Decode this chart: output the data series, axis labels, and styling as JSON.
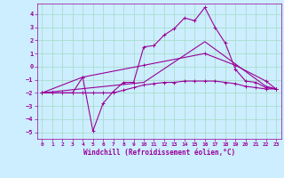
{
  "background_color": "#cceeff",
  "grid_color": "#aaddcc",
  "line_color": "#990099",
  "xlim": [
    -0.5,
    23.5
  ],
  "ylim": [
    -5.5,
    4.8
  ],
  "xticks": [
    0,
    1,
    2,
    3,
    4,
    5,
    6,
    7,
    8,
    9,
    10,
    11,
    12,
    13,
    14,
    15,
    16,
    17,
    18,
    19,
    20,
    21,
    22,
    23
  ],
  "yticks": [
    -5,
    -4,
    -3,
    -2,
    -1,
    0,
    1,
    2,
    3,
    4
  ],
  "xlabel": "Windchill (Refroidissement éolien,°C)",
  "series": [
    {
      "points": [
        [
          0,
          -2
        ],
        [
          1,
          -2
        ],
        [
          2,
          -2
        ],
        [
          3,
          -2
        ],
        [
          4,
          -0.8
        ],
        [
          5,
          -4.9
        ],
        [
          6,
          -2.8
        ],
        [
          7,
          -1.9
        ],
        [
          8,
          -1.2
        ],
        [
          9,
          -1.2
        ],
        [
          10,
          1.5
        ],
        [
          11,
          1.6
        ],
        [
          12,
          2.4
        ],
        [
          13,
          2.9
        ],
        [
          14,
          3.7
        ],
        [
          15,
          3.5
        ],
        [
          16,
          4.5
        ],
        [
          17,
          3.0
        ],
        [
          18,
          1.8
        ],
        [
          19,
          -0.2
        ],
        [
          20,
          -1.1
        ],
        [
          21,
          -1.2
        ],
        [
          22,
          -1.6
        ],
        [
          23,
          -1.7
        ]
      ],
      "marker": "+"
    },
    {
      "points": [
        [
          0,
          -2
        ],
        [
          1,
          -2
        ],
        [
          2,
          -2
        ],
        [
          3,
          -2
        ],
        [
          4,
          -2
        ],
        [
          5,
          -2
        ],
        [
          6,
          -2
        ],
        [
          7,
          -2
        ],
        [
          8,
          -1.8
        ],
        [
          9,
          -1.6
        ],
        [
          10,
          -1.4
        ],
        [
          11,
          -1.3
        ],
        [
          12,
          -1.2
        ],
        [
          13,
          -1.2
        ],
        [
          14,
          -1.1
        ],
        [
          15,
          -1.1
        ],
        [
          16,
          -1.1
        ],
        [
          17,
          -1.1
        ],
        [
          18,
          -1.2
        ],
        [
          19,
          -1.3
        ],
        [
          20,
          -1.5
        ],
        [
          21,
          -1.6
        ],
        [
          22,
          -1.7
        ],
        [
          23,
          -1.7
        ]
      ],
      "marker": "+"
    },
    {
      "points": [
        [
          0,
          -2
        ],
        [
          4,
          -0.8
        ],
        [
          10,
          0.1
        ],
        [
          16,
          1.0
        ],
        [
          19,
          0.1
        ],
        [
          22,
          -1.1
        ],
        [
          23,
          -1.7
        ]
      ],
      "marker": "+"
    },
    {
      "points": [
        [
          0,
          -2
        ],
        [
          10,
          -1.2
        ],
        [
          16,
          1.9
        ],
        [
          22,
          -1.5
        ],
        [
          23,
          -1.7
        ]
      ],
      "marker": null
    }
  ],
  "tick_fontsize": 4.5,
  "xlabel_fontsize": 5.5,
  "line_width": 0.8,
  "marker_size": 3.5
}
